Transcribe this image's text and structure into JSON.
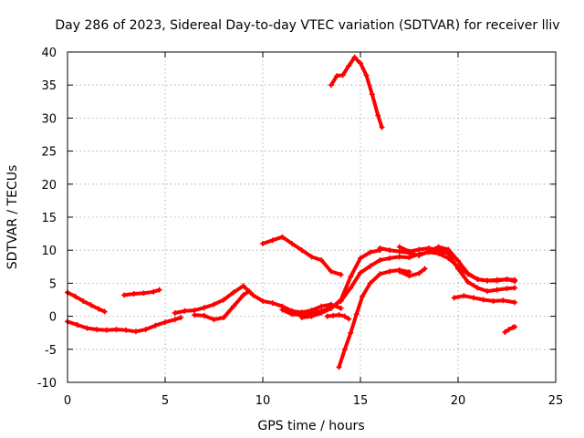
{
  "chart_data": {
    "type": "line",
    "title": "Day 286 of 2023, Sidereal Day-to-day VTEC variation (SDTVAR) for receiver lliv",
    "xlabel": "GPS time / hours",
    "ylabel": "SDTVAR / TECUs",
    "xlim": [
      0,
      25
    ],
    "ylim": [
      -10,
      40
    ],
    "xticks": [
      0,
      5,
      10,
      15,
      20,
      25
    ],
    "yticks": [
      -10,
      -5,
      0,
      5,
      10,
      15,
      20,
      25,
      30,
      35,
      40
    ],
    "grid": true,
    "color": "#ff0000",
    "series": [
      {
        "name": "s1",
        "x": [
          0.0,
          0.4,
          0.8,
          1.2,
          1.6,
          1.9
        ],
        "y": [
          3.6,
          3.0,
          2.3,
          1.7,
          1.1,
          0.7
        ]
      },
      {
        "name": "s2",
        "x": [
          0.0,
          0.5,
          1.0,
          1.5,
          2.0,
          2.5,
          3.0,
          3.5,
          4.0,
          4.5,
          5.0,
          5.5,
          5.8
        ],
        "y": [
          -0.8,
          -1.3,
          -1.8,
          -2.0,
          -2.1,
          -2.0,
          -2.1,
          -2.3,
          -2.0,
          -1.4,
          -0.9,
          -0.5,
          -0.2
        ]
      },
      {
        "name": "s3",
        "x": [
          2.9,
          3.4,
          3.9,
          4.4,
          4.7
        ],
        "y": [
          3.2,
          3.4,
          3.5,
          3.7,
          4.0
        ]
      },
      {
        "name": "s4",
        "x": [
          5.5,
          6.0,
          6.5,
          7.0,
          7.5,
          8.0,
          8.5,
          9.0,
          9.5,
          10.0,
          10.5,
          11.0,
          11.5,
          12.0,
          12.5,
          13.0,
          13.5,
          14.0
        ],
        "y": [
          0.5,
          0.8,
          0.9,
          1.3,
          1.8,
          2.5,
          3.6,
          4.6,
          3.2,
          2.3,
          2.0,
          1.5,
          0.8,
          0.6,
          0.9,
          1.5,
          1.8,
          1.2
        ]
      },
      {
        "name": "s5",
        "x": [
          6.5,
          7.0,
          7.5,
          8.0,
          8.5,
          9.0,
          9.3
        ],
        "y": [
          0.2,
          0.1,
          -0.5,
          -0.2,
          1.5,
          3.2,
          3.8
        ]
      },
      {
        "name": "s6",
        "x": [
          10.0,
          10.5,
          11.0,
          11.5,
          12.0,
          12.5,
          13.0,
          13.5,
          14.0
        ],
        "y": [
          11.0,
          11.5,
          12.0,
          11.0,
          10.0,
          9.0,
          8.5,
          6.8,
          6.3
        ]
      },
      {
        "name": "s7",
        "x": [
          11.0,
          11.5,
          12.0,
          12.5,
          13.0,
          13.5,
          14.0,
          14.5,
          15.0,
          15.5,
          16.0,
          16.5,
          17.0,
          17.5,
          18.0,
          18.5,
          19.0,
          19.5,
          20.0,
          20.5,
          21.0,
          21.5,
          22.0,
          22.5,
          22.9
        ],
        "y": [
          1.0,
          0.3,
          0.2,
          0.5,
          0.8,
          1.3,
          2.3,
          4.3,
          6.6,
          7.6,
          8.5,
          8.8,
          9.0,
          8.9,
          9.4,
          9.7,
          9.5,
          8.8,
          7.5,
          6.4,
          5.6,
          5.4,
          5.4,
          5.6,
          5.5
        ]
      },
      {
        "name": "s8",
        "x": [
          12.0,
          12.5,
          13.0,
          13.5,
          14.0,
          14.5,
          15.0,
          15.5,
          16.0
        ],
        "y": [
          -0.2,
          0.0,
          0.5,
          1.2,
          2.5,
          6.0,
          8.8,
          9.7,
          10.0
        ]
      },
      {
        "name": "s9",
        "x": [
          13.5,
          13.8,
          14.1,
          14.4,
          14.7,
          15.0,
          15.3,
          15.6,
          15.9,
          16.1
        ],
        "y": [
          35.0,
          36.4,
          36.5,
          37.9,
          39.2,
          38.3,
          36.5,
          33.6,
          30.4,
          28.6
        ]
      },
      {
        "name": "s10",
        "x": [
          13.3,
          13.6,
          13.9,
          14.2,
          14.4
        ],
        "y": [
          0.0,
          0.1,
          0.2,
          0.0,
          -0.4
        ]
      },
      {
        "name": "s11",
        "x": [
          13.9,
          14.2,
          14.5,
          14.8,
          15.1,
          15.5,
          16.0,
          16.5,
          17.0,
          17.5
        ],
        "y": [
          -7.7,
          -5.0,
          -2.5,
          0.3,
          3.0,
          5.0,
          6.4,
          6.8,
          7.0,
          6.7
        ]
      },
      {
        "name": "s12",
        "x": [
          16.0,
          16.5,
          17.0,
          17.5,
          18.0,
          18.5,
          19.0,
          19.5,
          20.0,
          20.5,
          21.0,
          21.5,
          22.0,
          22.5,
          22.9
        ],
        "y": [
          10.3,
          10.0,
          9.8,
          9.6,
          9.2,
          9.8,
          10.5,
          10.1,
          8.4,
          6.5,
          5.6,
          5.4,
          5.5,
          5.6,
          5.3
        ]
      },
      {
        "name": "s13",
        "x": [
          17.0,
          17.5,
          18.0,
          18.5,
          19.0,
          19.5,
          20.0,
          20.5,
          21.0,
          21.5,
          22.0,
          22.5,
          22.9
        ],
        "y": [
          10.5,
          9.8,
          10.1,
          10.3,
          10.0,
          9.5,
          7.2,
          5.2,
          4.3,
          3.8,
          4.0,
          4.2,
          4.3
        ]
      },
      {
        "name": "s14",
        "x": [
          17.0,
          17.5,
          18.0,
          18.3
        ],
        "y": [
          6.8,
          6.1,
          6.5,
          7.2
        ]
      },
      {
        "name": "s15",
        "x": [
          19.8,
          20.3,
          20.8,
          21.3,
          21.8,
          22.3,
          22.9
        ],
        "y": [
          2.8,
          3.1,
          2.8,
          2.5,
          2.3,
          2.4,
          2.1
        ]
      },
      {
        "name": "s16",
        "x": [
          22.4,
          22.6,
          22.8,
          22.9
        ],
        "y": [
          -2.4,
          -2.0,
          -1.7,
          -1.6
        ]
      }
    ]
  }
}
